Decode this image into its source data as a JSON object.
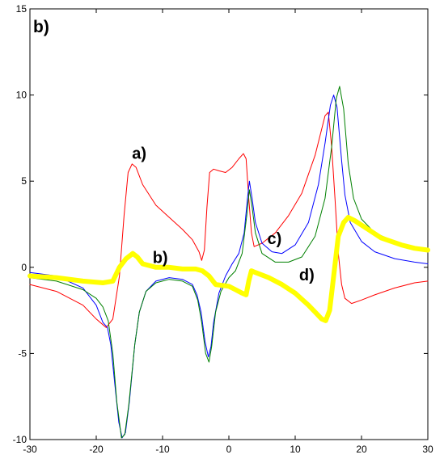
{
  "chart_data": {
    "type": "line",
    "panel_label": "b)",
    "xlim": [
      -30,
      30
    ],
    "ylim": [
      -10,
      15
    ],
    "x_ticks": [
      -30,
      -20,
      -10,
      0,
      10,
      20,
      30
    ],
    "y_ticks": [
      -10,
      -5,
      0,
      5,
      10,
      15
    ],
    "x_tick_labels": [
      "-30",
      "-20",
      "-10",
      "0",
      "10",
      "20",
      "30"
    ],
    "y_tick_labels": [
      "-10",
      "-5",
      "0",
      "5",
      "10",
      "15"
    ],
    "grid": false,
    "annotations": [
      {
        "text": "a)",
        "x": -14.6,
        "y": 6.3
      },
      {
        "text": "b)",
        "x": -11.5,
        "y": 0.25
      },
      {
        "text": "c)",
        "x": 5.8,
        "y": 1.35
      },
      {
        "text": "d)",
        "x": 10.6,
        "y": -0.75
      }
    ],
    "series": [
      {
        "color": "#ff0000",
        "width": 1,
        "points": [
          [
            -30,
            -1.0
          ],
          [
            -26,
            -1.4
          ],
          [
            -22,
            -2.2
          ],
          [
            -20,
            -3.0
          ],
          [
            -18.5,
            -3.5
          ],
          [
            -17.5,
            -3.0
          ],
          [
            -16.5,
            -0.5
          ],
          [
            -15.8,
            3.0
          ],
          [
            -15.2,
            5.5
          ],
          [
            -14.6,
            6.0
          ],
          [
            -14,
            5.8
          ],
          [
            -13,
            4.8
          ],
          [
            -11,
            3.6
          ],
          [
            -9,
            2.9
          ],
          [
            -7,
            2.2
          ],
          [
            -5.5,
            1.6
          ],
          [
            -4.5,
            0.9
          ],
          [
            -4.1,
            0.4
          ],
          [
            -3.7,
            1.0
          ],
          [
            -3.3,
            3.5
          ],
          [
            -2.9,
            5.5
          ],
          [
            -2.3,
            5.7
          ],
          [
            -1.5,
            5.6
          ],
          [
            -0.5,
            5.5
          ],
          [
            0.5,
            5.8
          ],
          [
            1.5,
            6.3
          ],
          [
            2.2,
            6.6
          ],
          [
            2.6,
            6.3
          ],
          [
            3.0,
            4.0
          ],
          [
            3.4,
            2.0
          ],
          [
            3.8,
            1.2
          ],
          [
            5,
            1.4
          ],
          [
            7,
            2.0
          ],
          [
            9,
            3.0
          ],
          [
            11,
            4.3
          ],
          [
            13,
            6.5
          ],
          [
            14.5,
            8.8
          ],
          [
            15,
            9.0
          ],
          [
            15.5,
            7.0
          ],
          [
            16,
            4.0
          ],
          [
            16.5,
            0.8
          ],
          [
            17,
            -1.0
          ],
          [
            17.5,
            -1.8
          ],
          [
            18.5,
            -2.1
          ],
          [
            20,
            -1.9
          ],
          [
            22,
            -1.6
          ],
          [
            25,
            -1.2
          ],
          [
            28,
            -0.9
          ],
          [
            30,
            -0.8
          ]
        ]
      },
      {
        "color": "#0000ff",
        "width": 1,
        "points": [
          [
            -30,
            -0.3
          ],
          [
            -26,
            -0.5
          ],
          [
            -22,
            -1.2
          ],
          [
            -20,
            -2.2
          ],
          [
            -19,
            -3.2
          ],
          [
            -18.3,
            -3.5
          ],
          [
            -17.8,
            -4.5
          ],
          [
            -17.2,
            -6.8
          ],
          [
            -16.6,
            -9.0
          ],
          [
            -16.1,
            -9.9
          ],
          [
            -15.6,
            -9.6
          ],
          [
            -15.0,
            -7.8
          ],
          [
            -14.2,
            -4.5
          ],
          [
            -13.5,
            -2.6
          ],
          [
            -12.5,
            -1.4
          ],
          [
            -11,
            -0.8
          ],
          [
            -9,
            -0.6
          ],
          [
            -7,
            -0.7
          ],
          [
            -5.5,
            -1.0
          ],
          [
            -4.8,
            -1.6
          ],
          [
            -4.2,
            -2.6
          ],
          [
            -3.6,
            -4.3
          ],
          [
            -3.1,
            -5.2
          ],
          [
            -2.7,
            -4.6
          ],
          [
            -2.3,
            -3.2
          ],
          [
            -1.5,
            -1.5
          ],
          [
            -0.5,
            -0.5
          ],
          [
            0.5,
            0.2
          ],
          [
            1.5,
            0.8
          ],
          [
            2.3,
            2.0
          ],
          [
            2.8,
            4.0
          ],
          [
            3.1,
            5.0
          ],
          [
            3.5,
            4.0
          ],
          [
            4,
            2.6
          ],
          [
            5,
            1.4
          ],
          [
            6.5,
            0.9
          ],
          [
            8,
            0.8
          ],
          [
            10,
            1.3
          ],
          [
            12,
            2.6
          ],
          [
            13.5,
            4.8
          ],
          [
            14.5,
            7.2
          ],
          [
            15.3,
            9.4
          ],
          [
            15.8,
            10.0
          ],
          [
            16.3,
            9.3
          ],
          [
            17,
            6.2
          ],
          [
            17.5,
            4.2
          ],
          [
            18.3,
            2.6
          ],
          [
            20,
            1.5
          ],
          [
            22,
            0.9
          ],
          [
            25,
            0.5
          ],
          [
            28,
            0.3
          ],
          [
            30,
            0.2
          ]
        ]
      },
      {
        "color": "#008000",
        "width": 1,
        "points": [
          [
            -30,
            -0.6
          ],
          [
            -26,
            -0.8
          ],
          [
            -22,
            -1.3
          ],
          [
            -20,
            -1.8
          ],
          [
            -19,
            -2.3
          ],
          [
            -18.2,
            -3.1
          ],
          [
            -17.5,
            -5.0
          ],
          [
            -16.9,
            -7.8
          ],
          [
            -16.2,
            -9.9
          ],
          [
            -15.7,
            -9.7
          ],
          [
            -15.1,
            -8.0
          ],
          [
            -14.2,
            -4.5
          ],
          [
            -13.5,
            -2.6
          ],
          [
            -12.5,
            -1.4
          ],
          [
            -11,
            -0.9
          ],
          [
            -9,
            -0.7
          ],
          [
            -7,
            -0.8
          ],
          [
            -5.5,
            -1.1
          ],
          [
            -4.7,
            -1.9
          ],
          [
            -4.1,
            -3.2
          ],
          [
            -3.5,
            -5.0
          ],
          [
            -3.0,
            -5.5
          ],
          [
            -2.6,
            -4.6
          ],
          [
            -2.0,
            -2.6
          ],
          [
            -1.2,
            -1.4
          ],
          [
            0,
            -0.6
          ],
          [
            1,
            -0.2
          ],
          [
            2,
            0.8
          ],
          [
            2.7,
            3.0
          ],
          [
            3.1,
            4.5
          ],
          [
            3.5,
            3.5
          ],
          [
            4,
            2.0
          ],
          [
            5,
            0.8
          ],
          [
            7,
            0.3
          ],
          [
            9,
            0.3
          ],
          [
            11,
            0.6
          ],
          [
            13,
            1.8
          ],
          [
            14.5,
            4.0
          ],
          [
            15.5,
            7.0
          ],
          [
            16.2,
            9.8
          ],
          [
            16.7,
            10.5
          ],
          [
            17.3,
            9.2
          ],
          [
            18,
            6.0
          ],
          [
            18.8,
            4.0
          ],
          [
            20,
            2.8
          ],
          [
            22,
            2.0
          ],
          [
            25,
            1.5
          ],
          [
            28,
            1.2
          ],
          [
            30,
            1.1
          ]
        ]
      },
      {
        "color": "#ffff00",
        "width": 6,
        "points": [
          [
            -30,
            -0.5
          ],
          [
            -26,
            -0.6
          ],
          [
            -22,
            -0.8
          ],
          [
            -19,
            -0.9
          ],
          [
            -17.5,
            -0.8
          ],
          [
            -16.5,
            0.0
          ],
          [
            -15.5,
            0.5
          ],
          [
            -14.5,
            0.8
          ],
          [
            -13.8,
            0.6
          ],
          [
            -13,
            0.2
          ],
          [
            -11,
            0.0
          ],
          [
            -9,
            0.0
          ],
          [
            -7,
            -0.1
          ],
          [
            -5,
            -0.1
          ],
          [
            -4,
            -0.2
          ],
          [
            -3,
            -0.5
          ],
          [
            -2,
            -1.0
          ],
          [
            0,
            -1.1
          ],
          [
            1,
            -1.3
          ],
          [
            2,
            -1.5
          ],
          [
            2.6,
            -1.6
          ],
          [
            3.0,
            -0.8
          ],
          [
            3.4,
            -0.2
          ],
          [
            4,
            -0.3
          ],
          [
            6,
            -0.6
          ],
          [
            8,
            -1.0
          ],
          [
            10,
            -1.5
          ],
          [
            12,
            -2.2
          ],
          [
            13,
            -2.6
          ],
          [
            14,
            -3.0
          ],
          [
            14.6,
            -3.1
          ],
          [
            15.2,
            -2.5
          ],
          [
            15.8,
            -0.5
          ],
          [
            16.5,
            1.8
          ],
          [
            17.3,
            2.6
          ],
          [
            18,
            2.9
          ],
          [
            19,
            2.7
          ],
          [
            21,
            2.2
          ],
          [
            23,
            1.7
          ],
          [
            26,
            1.3
          ],
          [
            28,
            1.1
          ],
          [
            30,
            1.0
          ]
        ]
      }
    ]
  }
}
